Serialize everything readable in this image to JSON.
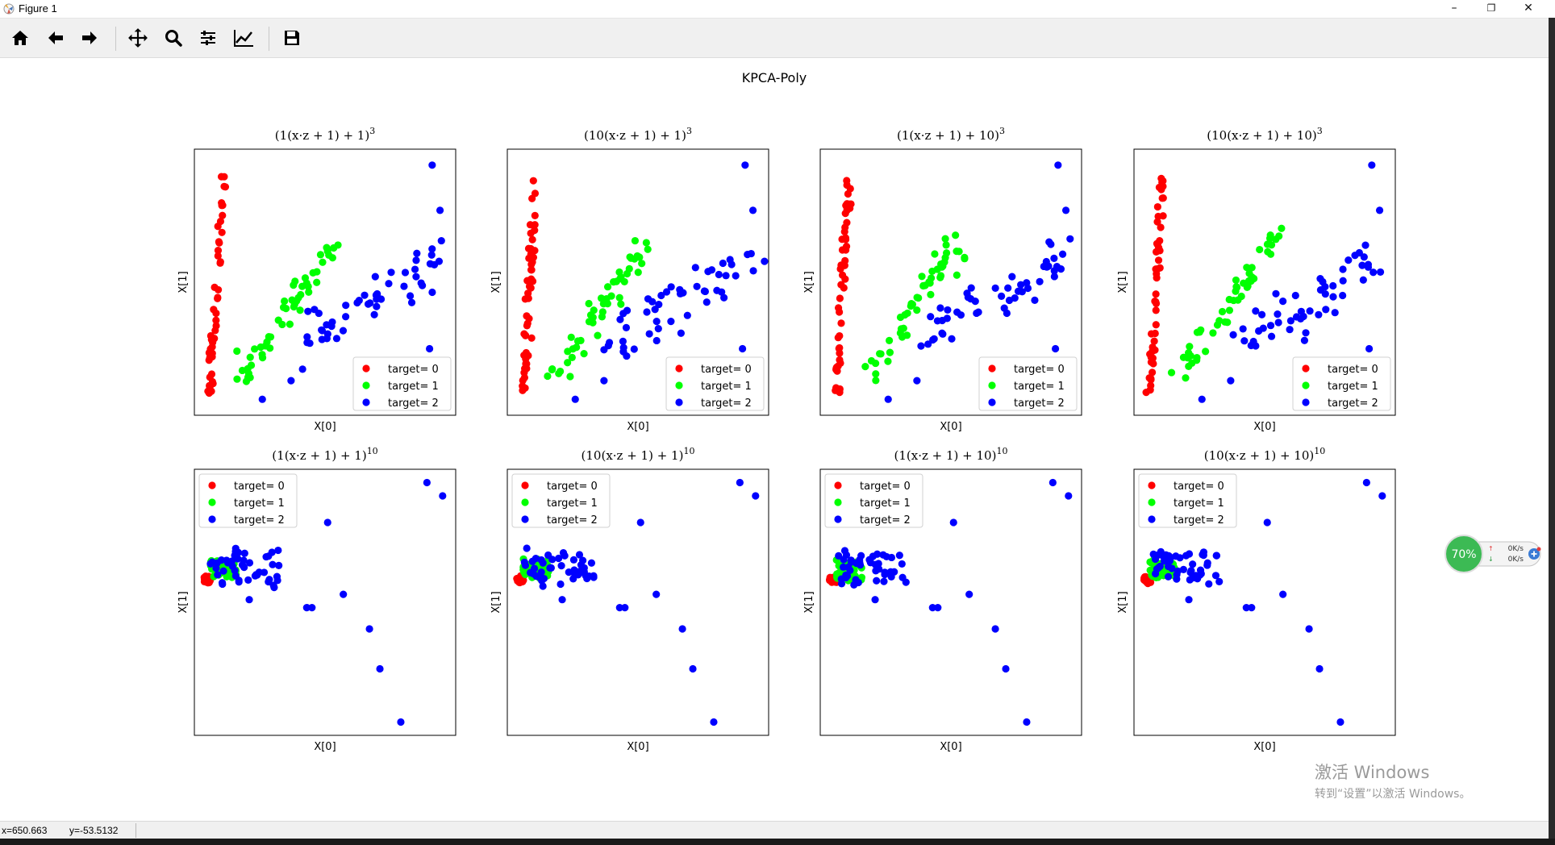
{
  "window": {
    "title": "Figure 1",
    "min": "–",
    "max": "❐",
    "close": "✕"
  },
  "toolbar": {
    "buttons": [
      {
        "name": "home-button",
        "icon": "home-icon"
      },
      {
        "name": "back-button",
        "icon": "arrow-left-icon"
      },
      {
        "name": "forward-button",
        "icon": "arrow-right-icon"
      },
      {
        "name": "pan-button",
        "icon": "move-icon"
      },
      {
        "name": "zoom-button",
        "icon": "magnifier-icon"
      },
      {
        "name": "subplots-button",
        "icon": "sliders-icon"
      },
      {
        "name": "edit-axes-button",
        "icon": "line-chart-icon"
      },
      {
        "name": "save-button",
        "icon": "floppy-icon"
      }
    ]
  },
  "figure": {
    "suptitle": "KPCA-Poly"
  },
  "legend": {
    "labels": [
      "target= 0",
      "target= 1",
      "target= 2"
    ]
  },
  "status": {
    "x": "x=650.663",
    "y": "y=-53.5132"
  },
  "net_widget": {
    "percent": "70%",
    "up": "0K/s",
    "down": "0K/s"
  },
  "watermark": {
    "title": "激活 Windows",
    "subtitle": "转到“设置”以激活 Windows。"
  },
  "colors": {
    "class0": "#ff0000",
    "class1": "#00ff00",
    "class2": "#0000ff"
  },
  "chart_data": [
    {
      "type": "scatter",
      "title_pre": "(1(x·z + 1) + 1)",
      "title_exp": "3",
      "xlabel": "X[0]",
      "ylabel": "X[1]",
      "legend": "lower-right",
      "series": [
        "target= 0",
        "target= 1",
        "target= 2"
      ]
    },
    {
      "type": "scatter",
      "title_pre": "(10(x·z + 1) + 1)",
      "title_exp": "3",
      "xlabel": "X[0]",
      "ylabel": "X[1]",
      "legend": "lower-right",
      "series": [
        "target= 0",
        "target= 1",
        "target= 2"
      ]
    },
    {
      "type": "scatter",
      "title_pre": "(1(x·z + 1) + 10)",
      "title_exp": "3",
      "xlabel": "X[0]",
      "ylabel": "X[1]",
      "legend": "lower-right",
      "series": [
        "target= 0",
        "target= 1",
        "target= 2"
      ]
    },
    {
      "type": "scatter",
      "title_pre": "(10(x·z + 1) + 10)",
      "title_exp": "3",
      "xlabel": "X[0]",
      "ylabel": "X[1]",
      "legend": "lower-right",
      "series": [
        "target= 0",
        "target= 1",
        "target= 2"
      ]
    },
    {
      "type": "scatter",
      "title_pre": "(1(x·z + 1) + 1)",
      "title_exp": "10",
      "xlabel": "X[0]",
      "ylabel": "X[1]",
      "legend": "upper-left",
      "series": [
        "target= 0",
        "target= 1",
        "target= 2"
      ]
    },
    {
      "type": "scatter",
      "title_pre": "(10(x·z + 1) + 1)",
      "title_exp": "10",
      "xlabel": "X[0]",
      "ylabel": "X[1]",
      "legend": "upper-left",
      "series": [
        "target= 0",
        "target= 1",
        "target= 2"
      ]
    },
    {
      "type": "scatter",
      "title_pre": "(1(x·z + 1) + 10)",
      "title_exp": "10",
      "xlabel": "X[0]",
      "ylabel": "X[1]",
      "legend": "upper-left",
      "series": [
        "target= 0",
        "target= 1",
        "target= 2"
      ]
    },
    {
      "type": "scatter",
      "title_pre": "(10(x·z + 1) + 10)",
      "title_exp": "10",
      "xlabel": "X[0]",
      "ylabel": "X[1]",
      "legend": "upper-left",
      "series": [
        "target= 0",
        "target= 1",
        "target= 2"
      ]
    }
  ]
}
